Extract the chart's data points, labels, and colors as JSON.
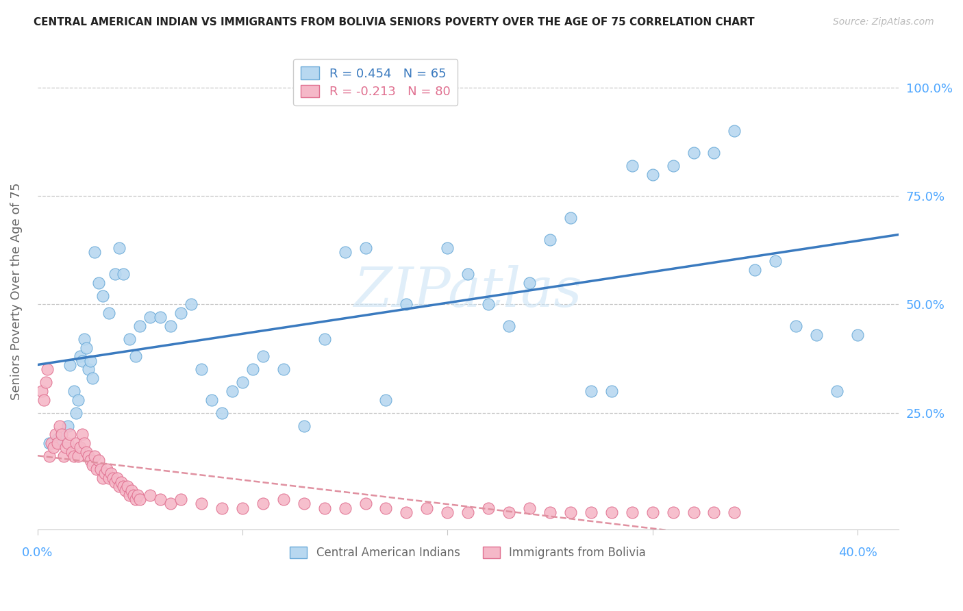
{
  "title": "CENTRAL AMERICAN INDIAN VS IMMIGRANTS FROM BOLIVIA SENIORS POVERTY OVER THE AGE OF 75 CORRELATION CHART",
  "source": "Source: ZipAtlas.com",
  "ylabel": "Seniors Poverty Over the Age of 75",
  "ytick_labels": [
    "100.0%",
    "75.0%",
    "50.0%",
    "25.0%"
  ],
  "ytick_values": [
    1.0,
    0.75,
    0.5,
    0.25
  ],
  "xtick_labels_show": [
    "0.0%",
    "40.0%"
  ],
  "xtick_values": [
    0.0,
    0.1,
    0.2,
    0.3,
    0.4
  ],
  "xlim": [
    0.0,
    0.42
  ],
  "ylim": [
    -0.02,
    1.08
  ],
  "R_blue": 0.454,
  "N_blue": 65,
  "R_pink": -0.213,
  "N_pink": 80,
  "legend_label_blue": "Central American Indians",
  "legend_label_pink": "Immigrants from Bolivia",
  "watermark": "ZIPatlas",
  "blue_scatter_color": "#b8d8f0",
  "blue_scatter_edge": "#6aaad8",
  "pink_scatter_color": "#f5b8c8",
  "pink_scatter_edge": "#e07090",
  "blue_line_color": "#3a7abf",
  "pink_line_color": "#e090a0",
  "grid_color": "#c8c8c8",
  "axis_label_color": "#4da6ff",
  "ylabel_color": "#666666",
  "title_color": "#222222",
  "source_color": "#bbbbbb",
  "blue_points_x": [
    0.006,
    0.01,
    0.012,
    0.015,
    0.016,
    0.018,
    0.019,
    0.02,
    0.021,
    0.022,
    0.023,
    0.024,
    0.025,
    0.026,
    0.027,
    0.028,
    0.03,
    0.032,
    0.035,
    0.038,
    0.04,
    0.042,
    0.045,
    0.048,
    0.05,
    0.055,
    0.06,
    0.065,
    0.07,
    0.075,
    0.08,
    0.085,
    0.09,
    0.095,
    0.1,
    0.105,
    0.11,
    0.12,
    0.13,
    0.14,
    0.15,
    0.16,
    0.17,
    0.18,
    0.2,
    0.21,
    0.22,
    0.23,
    0.24,
    0.25,
    0.26,
    0.27,
    0.28,
    0.29,
    0.3,
    0.31,
    0.32,
    0.33,
    0.34,
    0.35,
    0.36,
    0.37,
    0.38,
    0.39,
    0.4
  ],
  "blue_points_y": [
    0.18,
    0.19,
    0.2,
    0.22,
    0.36,
    0.3,
    0.25,
    0.28,
    0.38,
    0.37,
    0.42,
    0.4,
    0.35,
    0.37,
    0.33,
    0.62,
    0.55,
    0.52,
    0.48,
    0.57,
    0.63,
    0.57,
    0.42,
    0.38,
    0.45,
    0.47,
    0.47,
    0.45,
    0.48,
    0.5,
    0.35,
    0.28,
    0.25,
    0.3,
    0.32,
    0.35,
    0.38,
    0.35,
    0.22,
    0.42,
    0.62,
    0.63,
    0.28,
    0.5,
    0.63,
    0.57,
    0.5,
    0.45,
    0.55,
    0.65,
    0.7,
    0.3,
    0.3,
    0.82,
    0.8,
    0.82,
    0.85,
    0.85,
    0.9,
    0.58,
    0.6,
    0.45,
    0.43,
    0.3,
    0.43
  ],
  "pink_points_x": [
    0.002,
    0.003,
    0.004,
    0.005,
    0.006,
    0.007,
    0.008,
    0.009,
    0.01,
    0.011,
    0.012,
    0.013,
    0.014,
    0.015,
    0.016,
    0.017,
    0.018,
    0.019,
    0.02,
    0.021,
    0.022,
    0.023,
    0.024,
    0.025,
    0.026,
    0.027,
    0.028,
    0.029,
    0.03,
    0.031,
    0.032,
    0.033,
    0.034,
    0.035,
    0.036,
    0.037,
    0.038,
    0.039,
    0.04,
    0.041,
    0.042,
    0.043,
    0.044,
    0.045,
    0.046,
    0.047,
    0.048,
    0.049,
    0.05,
    0.055,
    0.06,
    0.065,
    0.07,
    0.08,
    0.09,
    0.1,
    0.11,
    0.12,
    0.13,
    0.14,
    0.15,
    0.16,
    0.17,
    0.18,
    0.19,
    0.2,
    0.21,
    0.22,
    0.23,
    0.24,
    0.25,
    0.26,
    0.27,
    0.28,
    0.29,
    0.3,
    0.31,
    0.32,
    0.33,
    0.34
  ],
  "pink_points_y": [
    0.3,
    0.28,
    0.32,
    0.35,
    0.15,
    0.18,
    0.17,
    0.2,
    0.18,
    0.22,
    0.2,
    0.15,
    0.17,
    0.18,
    0.2,
    0.16,
    0.15,
    0.18,
    0.15,
    0.17,
    0.2,
    0.18,
    0.16,
    0.15,
    0.14,
    0.13,
    0.15,
    0.12,
    0.14,
    0.12,
    0.1,
    0.11,
    0.12,
    0.1,
    0.11,
    0.1,
    0.09,
    0.1,
    0.08,
    0.09,
    0.08,
    0.07,
    0.08,
    0.06,
    0.07,
    0.06,
    0.05,
    0.06,
    0.05,
    0.06,
    0.05,
    0.04,
    0.05,
    0.04,
    0.03,
    0.03,
    0.04,
    0.05,
    0.04,
    0.03,
    0.03,
    0.04,
    0.03,
    0.02,
    0.03,
    0.02,
    0.02,
    0.03,
    0.02,
    0.03,
    0.02,
    0.02,
    0.02,
    0.02,
    0.02,
    0.02,
    0.02,
    0.02,
    0.02,
    0.02
  ]
}
